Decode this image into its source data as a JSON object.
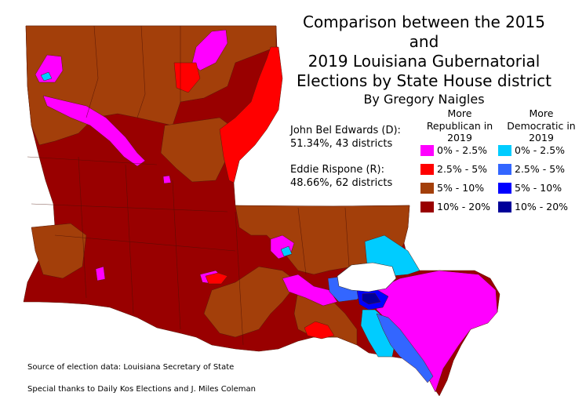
{
  "title": {
    "line1": "Comparison between the 2015 and",
    "line2": "2019 Louisiana Gubernatorial",
    "line3": "Elections by State House district",
    "byline": "By Gregory Naigles"
  },
  "candidates": [
    {
      "name": "John Bel Edwards (D):",
      "result": "51.34%, 43 districts"
    },
    {
      "name": "Eddie Rispone (R):",
      "result": "48.66%, 62 districts"
    }
  ],
  "legend": {
    "republican": {
      "heading": [
        "More",
        "Republican in",
        "2019"
      ],
      "items": [
        {
          "label": "0% - 2.5%",
          "color": "#ff00ff"
        },
        {
          "label": "2.5% - 5%",
          "color": "#ff0000"
        },
        {
          "label": "5% - 10%",
          "color": "#a33f0a"
        },
        {
          "label": "10% - 20%",
          "color": "#990000"
        }
      ]
    },
    "democratic": {
      "heading": [
        "More",
        "Democratic in",
        "2019"
      ],
      "items": [
        {
          "label": "0% - 2.5%",
          "color": "#00ccff"
        },
        {
          "label": "2.5% - 5%",
          "color": "#3366ff"
        },
        {
          "label": "5% - 10%",
          "color": "#0000ff"
        },
        {
          "label": "10% - 20%",
          "color": "#000099"
        }
      ]
    }
  },
  "footnotes": {
    "source": "Source of election data: Louisiana Secretary of State",
    "thanks": "Special thanks to Daily Kos Elections and J. Miles Coleman"
  }
}
